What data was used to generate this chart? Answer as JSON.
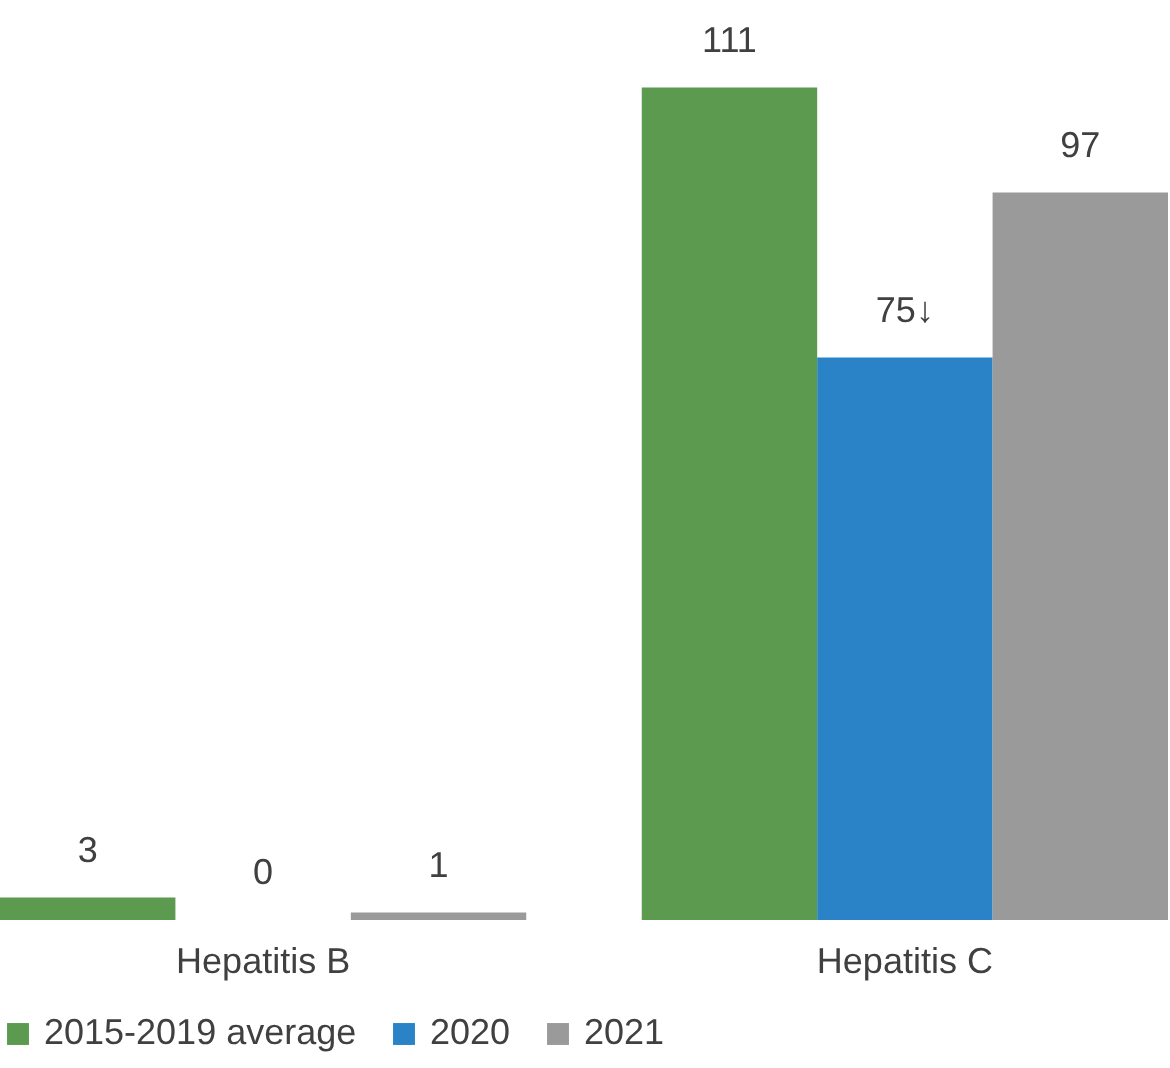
{
  "chart_data": {
    "type": "bar",
    "categories": [
      "Hepatitis B",
      "Hepatitis C"
    ],
    "series": [
      {
        "name": "2015-2019 average",
        "color": "#5b9a4f",
        "values": [
          3,
          111
        ],
        "value_labels": [
          "3",
          "111"
        ]
      },
      {
        "name": "2020",
        "color": "#2a83c6",
        "values": [
          0,
          75
        ],
        "value_labels": [
          "0",
          "75↓"
        ]
      },
      {
        "name": "2021",
        "color": "#9a9a9a",
        "values": [
          1,
          97
        ],
        "value_labels": [
          "1",
          "97"
        ]
      }
    ],
    "legend": "bottom",
    "grid": false
  }
}
